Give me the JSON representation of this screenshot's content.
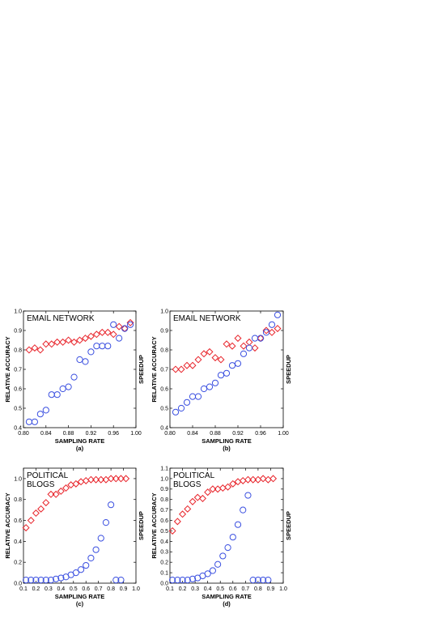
{
  "chart_data": [
    {
      "panel": "a",
      "type": "scatter",
      "title_lines": [
        "EMAIL NETWORK"
      ],
      "xlabel": "SAMPLING RATE",
      "ylabel": "RELATIVE ACCURACY",
      "y2label": "SPEEDUP",
      "sublabel": "(a)",
      "xlim": [
        0.8,
        1.0
      ],
      "ylim": [
        0.4,
        1.0
      ],
      "xticks": [
        "0.80",
        "0.84",
        "0.88",
        "0.92",
        "0.96",
        "1.00"
      ],
      "yticks": [
        "0.4",
        "0.5",
        "0.6",
        "0.7",
        "0.8",
        "0.9",
        "1.0"
      ],
      "series": [
        {
          "marker": "diamond",
          "color": "#e8232a",
          "x": [
            0.81,
            0.82,
            0.83,
            0.84,
            0.85,
            0.86,
            0.87,
            0.88,
            0.89,
            0.9,
            0.91,
            0.92,
            0.93,
            0.94,
            0.95,
            0.96,
            0.97,
            0.98,
            0.99
          ],
          "y": [
            0.8,
            0.81,
            0.8,
            0.83,
            0.83,
            0.84,
            0.84,
            0.85,
            0.84,
            0.85,
            0.86,
            0.87,
            0.88,
            0.89,
            0.89,
            0.88,
            0.92,
            0.91,
            0.94
          ]
        },
        {
          "marker": "circle",
          "color": "#3a4fe0",
          "x": [
            0.81,
            0.82,
            0.83,
            0.84,
            0.85,
            0.86,
            0.87,
            0.88,
            0.89,
            0.9,
            0.91,
            0.92,
            0.93,
            0.94,
            0.95,
            0.96,
            0.97,
            0.98,
            0.99
          ],
          "y": [
            0.43,
            0.43,
            0.47,
            0.49,
            0.57,
            0.57,
            0.6,
            0.61,
            0.66,
            0.75,
            0.74,
            0.79,
            0.82,
            0.82,
            0.82,
            0.93,
            0.86,
            0.91,
            0.93
          ]
        }
      ]
    },
    {
      "panel": "b",
      "type": "scatter",
      "title_lines": [
        "EMAIL NETWORK"
      ],
      "xlabel": "SAMPLING RATE",
      "ylabel": "RELATIVE ACCURACY",
      "y2label": "SPEEDUP",
      "sublabel": "(b)",
      "xlim": [
        0.8,
        1.0
      ],
      "ylim": [
        0.4,
        1.0
      ],
      "xticks": [
        "0.80",
        "0.84",
        "0.88",
        "0.92",
        "0.96",
        "1.00"
      ],
      "yticks": [
        "0.4",
        "0.5",
        "0.6",
        "0.7",
        "0.8",
        "0.9",
        "1.0"
      ],
      "series": [
        {
          "marker": "diamond",
          "color": "#e8232a",
          "x": [
            0.81,
            0.82,
            0.83,
            0.84,
            0.85,
            0.86,
            0.87,
            0.88,
            0.89,
            0.9,
            0.91,
            0.92,
            0.93,
            0.94,
            0.95,
            0.96,
            0.97,
            0.98,
            0.99
          ],
          "y": [
            0.7,
            0.7,
            0.72,
            0.72,
            0.75,
            0.78,
            0.79,
            0.76,
            0.75,
            0.83,
            0.82,
            0.86,
            0.82,
            0.84,
            0.81,
            0.86,
            0.9,
            0.89,
            0.91
          ]
        },
        {
          "marker": "circle",
          "color": "#3a4fe0",
          "x": [
            0.81,
            0.82,
            0.83,
            0.84,
            0.85,
            0.86,
            0.87,
            0.88,
            0.89,
            0.9,
            0.91,
            0.92,
            0.93,
            0.94,
            0.95,
            0.96,
            0.97,
            0.98,
            0.99
          ],
          "y": [
            0.48,
            0.5,
            0.53,
            0.56,
            0.56,
            0.6,
            0.61,
            0.63,
            0.67,
            0.68,
            0.72,
            0.73,
            0.78,
            0.81,
            0.86,
            0.86,
            0.89,
            0.93,
            0.98
          ]
        }
      ]
    },
    {
      "panel": "c",
      "type": "scatter",
      "title_lines": [
        "POLITICAL",
        "BLOGS"
      ],
      "xlabel": "SAMPLING RATE",
      "ylabel": "RELATIVE ACCURACY",
      "y2label": "SPEEDUP",
      "sublabel": "(c)",
      "xlim": [
        0.1,
        1.0
      ],
      "ylim": [
        0.0,
        1.1
      ],
      "xticks": [
        "0.1",
        "0.2",
        "0.3",
        "0.4",
        "0.5",
        "0.6",
        "0.7",
        "0.8",
        "0.9",
        "1.0"
      ],
      "yticks": [
        "0.0",
        "0.2",
        "0.4",
        "0.6",
        "0.8",
        "1.0"
      ],
      "series": [
        {
          "marker": "diamond",
          "color": "#e8232a",
          "x": [
            0.12,
            0.16,
            0.2,
            0.24,
            0.28,
            0.32,
            0.36,
            0.4,
            0.44,
            0.48,
            0.52,
            0.56,
            0.6,
            0.64,
            0.68,
            0.72,
            0.76,
            0.8,
            0.84,
            0.88,
            0.92
          ],
          "y": [
            0.53,
            0.6,
            0.67,
            0.71,
            0.77,
            0.85,
            0.85,
            0.88,
            0.91,
            0.94,
            0.95,
            0.97,
            0.98,
            0.99,
            0.99,
            0.99,
            0.99,
            1.0,
            1.0,
            1.0,
            1.0
          ]
        },
        {
          "marker": "circle",
          "color": "#3a4fe0",
          "x": [
            0.12,
            0.16,
            0.2,
            0.24,
            0.28,
            0.32,
            0.36,
            0.4,
            0.44,
            0.48,
            0.52,
            0.56,
            0.6,
            0.64,
            0.68,
            0.72,
            0.76,
            0.8,
            0.84,
            0.88
          ],
          "y": [
            0.03,
            0.03,
            0.03,
            0.03,
            0.03,
            0.03,
            0.04,
            0.05,
            0.06,
            0.08,
            0.1,
            0.13,
            0.17,
            0.24,
            0.32,
            0.43,
            0.58,
            0.75,
            0.03,
            0.03
          ]
        }
      ]
    },
    {
      "panel": "d",
      "type": "scatter",
      "title_lines": [
        "POLITICAL",
        "BLOGS"
      ],
      "xlabel": "SAMPLING RATE",
      "ylabel": "RELATIVE ACCURACY",
      "y2label": "SPEEDUP",
      "sublabel": "(d)",
      "xlim": [
        0.1,
        1.0
      ],
      "ylim": [
        0.0,
        1.1
      ],
      "xticks": [
        "0.1",
        "0.2",
        "0.3",
        "0.4",
        "0.5",
        "0.6",
        "0.7",
        "0.8",
        "0.9",
        "1.0"
      ],
      "yticks": [
        "0.0",
        "0.1",
        "0.2",
        "0.3",
        "0.4",
        "0.5",
        "0.6",
        "0.7",
        "0.8",
        "0.9",
        "1.0",
        "1.1"
      ],
      "series": [
        {
          "marker": "diamond",
          "color": "#e8232a",
          "x": [
            0.12,
            0.16,
            0.2,
            0.24,
            0.28,
            0.32,
            0.36,
            0.4,
            0.44,
            0.48,
            0.52,
            0.56,
            0.6,
            0.64,
            0.68,
            0.72,
            0.76,
            0.8,
            0.84,
            0.88,
            0.92
          ],
          "y": [
            0.5,
            0.59,
            0.66,
            0.71,
            0.78,
            0.82,
            0.81,
            0.87,
            0.9,
            0.9,
            0.91,
            0.92,
            0.95,
            0.97,
            0.98,
            0.99,
            0.99,
            0.99,
            1.0,
            0.99,
            1.0
          ]
        },
        {
          "marker": "circle",
          "color": "#3a4fe0",
          "x": [
            0.12,
            0.16,
            0.2,
            0.24,
            0.28,
            0.32,
            0.36,
            0.4,
            0.44,
            0.48,
            0.52,
            0.56,
            0.6,
            0.64,
            0.68,
            0.72,
            0.76,
            0.8,
            0.84,
            0.88
          ],
          "y": [
            0.03,
            0.03,
            0.03,
            0.03,
            0.04,
            0.05,
            0.07,
            0.09,
            0.12,
            0.18,
            0.26,
            0.34,
            0.44,
            0.56,
            0.7,
            0.84,
            0.03,
            0.03,
            0.03,
            0.03
          ]
        }
      ]
    }
  ]
}
